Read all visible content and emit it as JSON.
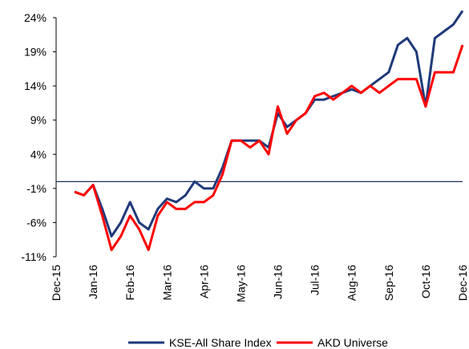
{
  "chart_data": {
    "type": "line",
    "categories": [
      "Dec-15",
      null,
      null,
      null,
      "Jan-16",
      null,
      null,
      null,
      "Feb-16",
      null,
      null,
      null,
      "Mar-16",
      null,
      null,
      null,
      "Apr-16",
      null,
      null,
      null,
      "May-16",
      null,
      null,
      null,
      "Jun-16",
      null,
      null,
      null,
      "Jul-16",
      null,
      null,
      null,
      "Aug-16",
      null,
      null,
      null,
      "Sep-16",
      null,
      null,
      null,
      "Oct-16",
      null,
      null,
      null,
      "Dec-16"
    ],
    "series": [
      {
        "name": "KSE-All Share Index",
        "color": "#1f3a7a",
        "values": [
          null,
          null,
          -1.5,
          -2,
          -0.5,
          -4,
          -8,
          -6,
          -3,
          -6,
          -7,
          -4,
          -2.5,
          -3,
          -2,
          0,
          -1,
          -1,
          2,
          6,
          6,
          6,
          6,
          5,
          10,
          8,
          9,
          10,
          12,
          12,
          12.5,
          13,
          13.5,
          13,
          14,
          15,
          16,
          20,
          21,
          19,
          11,
          21,
          22,
          23,
          25
        ]
      },
      {
        "name": "AKD Universe",
        "color": "#ff0000",
        "values": [
          null,
          null,
          -1.5,
          -2,
          -0.5,
          -5,
          -10,
          -8,
          -5,
          -7,
          -10,
          -5,
          -3,
          -4,
          -4,
          -3,
          -3,
          -2,
          1,
          6,
          6,
          5,
          6,
          4,
          11,
          7,
          9,
          10,
          12.5,
          13,
          12,
          13,
          14,
          13,
          14,
          13,
          14,
          15,
          15,
          15,
          11,
          16,
          16,
          16,
          20
        ]
      }
    ],
    "ylim": [
      -11,
      24
    ],
    "yticks": [
      {
        "value": -11,
        "label": "-11%"
      },
      {
        "value": -6,
        "label": "-6%"
      },
      {
        "value": -1,
        "label": "-1%"
      },
      {
        "value": 4,
        "label": "4%"
      },
      {
        "value": 9,
        "label": "9%"
      },
      {
        "value": 14,
        "label": "14%"
      },
      {
        "value": 19,
        "label": "19%"
      },
      {
        "value": 24,
        "label": "24%"
      }
    ],
    "legend": "bottom"
  }
}
